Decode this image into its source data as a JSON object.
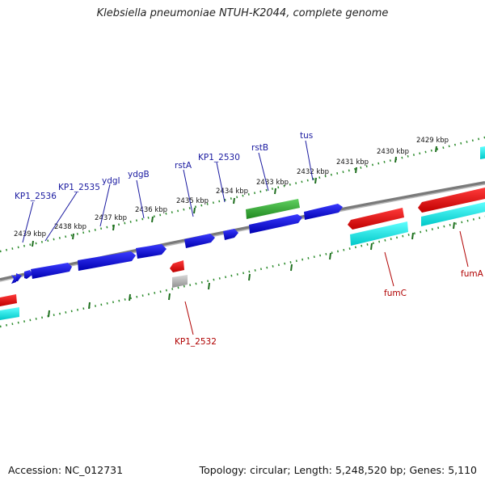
{
  "title": "Klebsiella pneumoniae NTUH-K2044, complete genome",
  "footer": {
    "accession": "Accession: NC_012731",
    "summary": "Topology: circular; Length: 5,248,520 bp; Genes: 5,110"
  },
  "colors": {
    "forward_cds": "#1010e0",
    "reverse_cds": "#e01010",
    "rna_cyan": "#10e0e0",
    "gray_feature": "#b0b0b0",
    "green_feature": "#30b030",
    "backbone": "#808080",
    "tick_green": "#207820",
    "label_blue": "#1a1aa0",
    "label_red": "#b00000"
  },
  "ticks": [
    {
      "label": "2439 kbp"
    },
    {
      "label": "2438 kbp"
    },
    {
      "label": "2437 kbp"
    },
    {
      "label": "2436 kbp"
    },
    {
      "label": "2435 kbp"
    },
    {
      "label": "2434 kbp"
    },
    {
      "label": "2433 kbp"
    },
    {
      "label": "2432 kbp"
    },
    {
      "label": "2431 kbp"
    },
    {
      "label": "2430 kbp"
    },
    {
      "label": "2429 kbp"
    }
  ],
  "gene_labels_top": [
    {
      "label": "KP1_2536"
    },
    {
      "label": "KP1_2535"
    },
    {
      "label": "ydgI"
    },
    {
      "label": "ydgB"
    },
    {
      "label": "rstA"
    },
    {
      "label": "KP1_2530"
    },
    {
      "label": "rstB"
    },
    {
      "label": "tus"
    }
  ],
  "gene_labels_bottom": [
    {
      "label": "KP1_2532"
    },
    {
      "label": "fumC"
    },
    {
      "label": "fumA"
    }
  ]
}
